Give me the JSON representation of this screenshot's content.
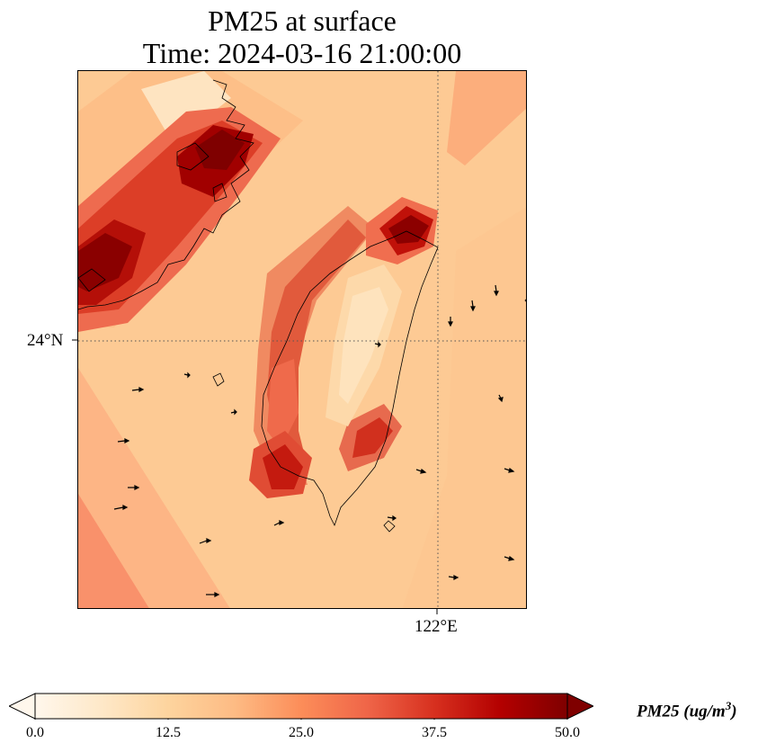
{
  "title": {
    "line1": "PM25 at surface",
    "line2": "Time: 2024-03-16 21:00:00"
  },
  "axes": {
    "lat_tick_label": "24°N",
    "lon_tick_label": "122°E",
    "gridline_style": "dotted"
  },
  "colorbar": {
    "label_name": "PM25 (ug/m",
    "label_exp": "3",
    "label_close": ")",
    "ticks": [
      "0.0",
      "12.5",
      "25.0",
      "37.5",
      "50.0"
    ],
    "min": 0,
    "max": 50,
    "extend": "both",
    "colormap": "OrRd",
    "colors": [
      "#fff7ec",
      "#fee8c8",
      "#fdd49e",
      "#fdbb84",
      "#fc8d59",
      "#ef6548",
      "#d7301f",
      "#b30000",
      "#7f0000"
    ]
  },
  "map": {
    "region": "Taiwan Strait",
    "features": [
      "coastlines",
      "wind-vectors",
      "pm25-field"
    ]
  }
}
